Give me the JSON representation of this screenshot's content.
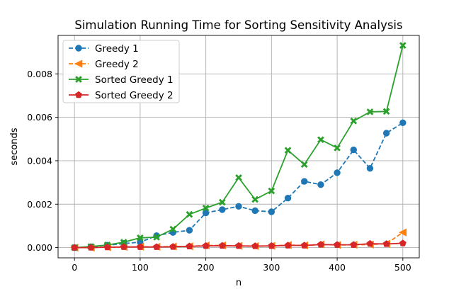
{
  "chart_data": {
    "type": "line",
    "title": "Simulation Running Time for Sorting Sensitivity Analysis",
    "xlabel": "n",
    "ylabel": "seconds",
    "xlim": [
      -25,
      525
    ],
    "ylim": [
      -0.00047,
      0.00977
    ],
    "xticks": [
      0,
      100,
      200,
      300,
      400,
      500
    ],
    "xtick_labels": [
      "0",
      "100",
      "200",
      "300",
      "400",
      "500"
    ],
    "yticks": [
      0.0,
      0.002,
      0.004,
      0.006,
      0.008
    ],
    "ytick_labels": [
      "0.000",
      "0.002",
      "0.004",
      "0.006",
      "0.008"
    ],
    "grid": true,
    "legend_position": "top-left",
    "x": [
      0,
      25,
      50,
      75,
      100,
      125,
      150,
      175,
      200,
      225,
      250,
      275,
      300,
      325,
      350,
      375,
      400,
      425,
      450,
      475,
      500
    ],
    "series": [
      {
        "name": "Greedy 1",
        "color": "#1f77b4",
        "marker": "circle",
        "linestyle": "dashed",
        "values": [
          0.0,
          4e-05,
          0.00011,
          0.00019,
          0.00025,
          0.00055,
          0.0007,
          0.0008,
          0.0016,
          0.00175,
          0.0019,
          0.0017,
          0.00165,
          0.00228,
          0.00305,
          0.0029,
          0.00345,
          0.0045,
          0.00365,
          0.00527,
          0.00575
        ]
      },
      {
        "name": "Greedy 2",
        "color": "#ff7f0e",
        "marker": "triangle-left",
        "linestyle": "dashed",
        "values": [
          0.0,
          0.0,
          2e-05,
          3e-05,
          4e-05,
          4e-05,
          5e-05,
          6e-05,
          0.0001,
          0.0001,
          8e-05,
          7e-05,
          8e-05,
          0.00012,
          0.0001,
          0.00015,
          0.00012,
          0.00013,
          0.00014,
          0.00018,
          0.0007
        ]
      },
      {
        "name": "Sorted Greedy 1",
        "color": "#2ca02c",
        "marker": "x-filled",
        "linestyle": "solid",
        "values": [
          0.0,
          5e-05,
          0.00012,
          0.00025,
          0.00045,
          0.00048,
          0.00085,
          0.00153,
          0.00182,
          0.00209,
          0.00322,
          0.00222,
          0.00261,
          0.00448,
          0.00383,
          0.00497,
          0.00459,
          0.00583,
          0.00625,
          0.00627,
          0.00931
        ]
      },
      {
        "name": "Sorted Greedy 2",
        "color": "#d62728",
        "marker": "pentagon",
        "linestyle": "solid",
        "values": [
          0.0,
          0.0,
          2e-05,
          3e-05,
          3e-05,
          3e-05,
          4e-05,
          6e-05,
          8e-05,
          9e-05,
          8e-05,
          7e-05,
          8e-05,
          0.0001,
          0.0001,
          0.00014,
          0.00013,
          0.00013,
          0.00018,
          0.00017,
          0.0002
        ]
      }
    ]
  }
}
